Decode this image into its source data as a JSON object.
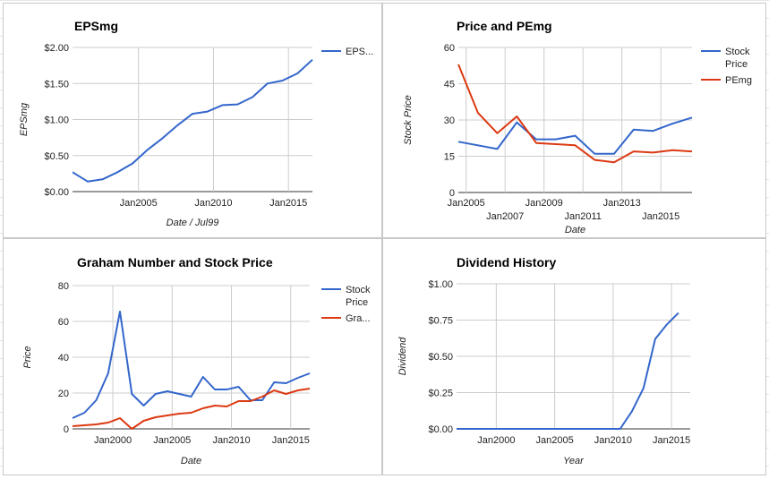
{
  "colors": {
    "blue": "#3366cc",
    "red": "#dc3912",
    "grid": "#cccccc",
    "axis": "#333333"
  },
  "chart_data": [
    {
      "type": "line",
      "title": "EPSmg",
      "xlabel": "Date / Jul99",
      "ylabel": "EPSmg",
      "xlim": [
        2000.6,
        2016.6
      ],
      "ylim": [
        0,
        2
      ],
      "ytick_values": [
        0,
        0.5,
        1.0,
        1.5,
        2.0
      ],
      "ytick_labels": [
        "$0.00",
        "$0.50",
        "$1.00",
        "$1.50",
        "$2.00"
      ],
      "xtick_values": [
        2005,
        2010,
        2015
      ],
      "xtick_labels": [
        "Jan2005",
        "Jan2010",
        "Jan2015"
      ],
      "legend": "right",
      "series": [
        {
          "name": "EPS...",
          "color": "#3366cc",
          "x": [
            2000.6,
            2001.6,
            2002.6,
            2003.6,
            2004.6,
            2005.6,
            2006.6,
            2007.6,
            2008.6,
            2009.6,
            2010.6,
            2011.6,
            2012.6,
            2013.6,
            2014.6,
            2015.6,
            2016.6
          ],
          "y": [
            0.27,
            0.14,
            0.17,
            0.27,
            0.39,
            0.58,
            0.74,
            0.92,
            1.08,
            1.11,
            1.2,
            1.21,
            1.31,
            1.5,
            1.54,
            1.64,
            1.83
          ]
        }
      ]
    },
    {
      "type": "line",
      "title": "Price and PEmg",
      "xlabel": "Date",
      "ylabel": "Stock Price",
      "xlim": [
        2004.6,
        2016.6
      ],
      "ylim": [
        0,
        60
      ],
      "ytick_values": [
        0,
        15,
        30,
        45,
        60
      ],
      "ytick_labels": [
        "0",
        "15",
        "30",
        "45",
        "60"
      ],
      "xtick_values": [
        2005,
        2007,
        2009,
        2011,
        2013,
        2015
      ],
      "xtick_labels": [
        "Jan2005",
        "Jan2007",
        "Jan2009",
        "Jan2011",
        "Jan2013",
        "Jan2015"
      ],
      "legend": "right",
      "series": [
        {
          "name": "Stock Price",
          "legend_lines": [
            "Stock",
            "Price"
          ],
          "color": "#3366cc",
          "x": [
            2004.6,
            2005.6,
            2006.6,
            2007.6,
            2008.6,
            2009.6,
            2010.6,
            2011.6,
            2012.6,
            2013.6,
            2014.6,
            2015.6,
            2016.6
          ],
          "y": [
            21,
            19.5,
            18,
            29,
            22,
            22,
            23.5,
            16,
            16,
            26,
            25.5,
            28.5,
            31
          ]
        },
        {
          "name": "PEmg",
          "legend_lines": [
            "PEmg"
          ],
          "color": "#dc3912",
          "x": [
            2004.6,
            2005.6,
            2006.6,
            2007.6,
            2008.6,
            2009.6,
            2010.6,
            2011.6,
            2012.6,
            2013.6,
            2014.6,
            2015.6,
            2016.6
          ],
          "y": [
            53,
            33,
            24.5,
            31.5,
            20.5,
            20,
            19.5,
            13.5,
            12.5,
            17,
            16.5,
            17.5,
            17
          ]
        }
      ]
    },
    {
      "type": "line",
      "title": "Graham Number and Stock Price",
      "xlabel": "Date",
      "ylabel": "Price",
      "xlim": [
        1996.6,
        2016.6
      ],
      "ylim": [
        0,
        80
      ],
      "ytick_values": [
        0,
        20,
        40,
        60,
        80
      ],
      "ytick_labels": [
        "0",
        "20",
        "40",
        "60",
        "80"
      ],
      "xtick_values": [
        2000,
        2005,
        2010,
        2015
      ],
      "xtick_labels": [
        "Jan2000",
        "Jan2005",
        "Jan2010",
        "Jan2015"
      ],
      "legend": "right",
      "series": [
        {
          "name": "Stock Price",
          "legend_lines": [
            "Stock",
            "Price"
          ],
          "color": "#3366cc",
          "x": [
            1996.6,
            1997.6,
            1998.6,
            1999.6,
            2000.6,
            2001.6,
            2002.6,
            2003.6,
            2004.6,
            2005.6,
            2006.6,
            2007.6,
            2008.6,
            2009.6,
            2010.6,
            2011.6,
            2012.6,
            2013.6,
            2014.6,
            2015.6,
            2016.6
          ],
          "y": [
            6,
            9,
            16,
            31,
            65.5,
            19.5,
            13,
            19.5,
            21,
            19.5,
            18,
            29,
            22,
            22,
            23.5,
            16,
            16,
            26,
            25.5,
            28.5,
            31
          ]
        },
        {
          "name": "Gra...",
          "legend_lines": [
            "Gra..."
          ],
          "color": "#dc3912",
          "x": [
            1996.6,
            1997.6,
            1998.6,
            1999.6,
            2000.6,
            2001.6,
            2002.6,
            2003.6,
            2004.6,
            2005.6,
            2006.6,
            2007.6,
            2008.6,
            2009.6,
            2010.6,
            2011.6,
            2012.6,
            2013.6,
            2014.6,
            2015.6,
            2016.6
          ],
          "y": [
            1.5,
            2,
            2.5,
            3.5,
            6,
            0,
            4.5,
            6.5,
            7.5,
            8.5,
            9,
            11.5,
            13,
            12.5,
            15.5,
            15.5,
            18,
            21.5,
            19.5,
            21.5,
            22.5
          ]
        }
      ]
    },
    {
      "type": "line",
      "title": "Dividend History",
      "xlabel": "Year",
      "ylabel": "Dividend",
      "xlim": [
        1996.6,
        2016.6
      ],
      "ylim": [
        0,
        1
      ],
      "ytick_values": [
        0,
        0.25,
        0.5,
        0.75,
        1.0
      ],
      "ytick_labels": [
        "$0.00",
        "$0.25",
        "$0.50",
        "$0.75",
        "$1.00"
      ],
      "xtick_values": [
        2000,
        2005,
        2010,
        2015
      ],
      "xtick_labels": [
        "Jan2000",
        "Jan2005",
        "Jan2010",
        "Jan2015"
      ],
      "legend": "none",
      "series": [
        {
          "color": "#3366cc",
          "x": [
            1996.6,
            2010.6,
            2011.6,
            2012.6,
            2013.6,
            2014.6,
            2015.6
          ],
          "y": [
            0,
            0,
            0.12,
            0.28,
            0.62,
            0.72,
            0.8
          ]
        }
      ]
    }
  ]
}
